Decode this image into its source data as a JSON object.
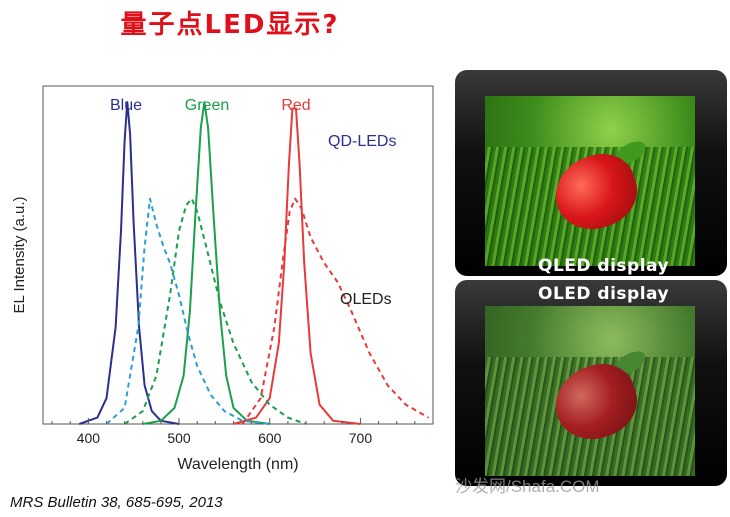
{
  "title": "量子点LED显示?",
  "citation": "MRS Bulletin 38, 685-695, 2013",
  "panels": {
    "top_label": "QLED  display",
    "bottom_label": "OLED display",
    "watermark": "沙发网/Shafa.COM"
  },
  "colors": {
    "blue": "#2b2f8f",
    "green": "#1aa04a",
    "red": "#e83a3a",
    "cyan": "#2a9fd6",
    "title": "#e0101a"
  },
  "chart_data": {
    "type": "line",
    "xlabel": "Wavelength (nm)",
    "ylabel": "EL Intensity (a.u.)",
    "xlim": [
      350,
      780
    ],
    "ylim": [
      0,
      1.05
    ],
    "xticks": [
      400,
      500,
      600,
      700
    ],
    "peak_labels": [
      "Blue",
      "Green",
      "Red"
    ],
    "annotations": [
      "QD-LEDs",
      "OLEDs"
    ],
    "series": [
      {
        "group": "QD-LEDs",
        "color": "blue",
        "style": "solid",
        "x": [
          390,
          410,
          420,
          430,
          436,
          440,
          443,
          446,
          450,
          456,
          462,
          470,
          480,
          500
        ],
        "y": [
          0,
          0.02,
          0.08,
          0.3,
          0.6,
          0.88,
          1.0,
          0.9,
          0.62,
          0.3,
          0.12,
          0.04,
          0.01,
          0
        ]
      },
      {
        "group": "QD-LEDs",
        "color": "green",
        "style": "solid",
        "x": [
          460,
          480,
          495,
          505,
          512,
          518,
          524,
          528,
          532,
          538,
          545,
          552,
          560,
          575,
          600
        ],
        "y": [
          0,
          0.01,
          0.05,
          0.15,
          0.35,
          0.65,
          0.92,
          1.0,
          0.92,
          0.65,
          0.35,
          0.15,
          0.05,
          0.01,
          0
        ]
      },
      {
        "group": "QD-LEDs",
        "color": "red",
        "style": "solid",
        "x": [
          560,
          585,
          600,
          610,
          616,
          621,
          625,
          629,
          633,
          638,
          645,
          655,
          670,
          700
        ],
        "y": [
          0,
          0.02,
          0.08,
          0.25,
          0.5,
          0.8,
          0.98,
          0.98,
          0.8,
          0.5,
          0.22,
          0.06,
          0.01,
          0
        ]
      },
      {
        "group": "OLEDs",
        "color": "cyan",
        "style": "dashed",
        "x": [
          420,
          440,
          455,
          462,
          468,
          475,
          483,
          490,
          500,
          510,
          520,
          535,
          550,
          570,
          600
        ],
        "y": [
          0,
          0.05,
          0.3,
          0.55,
          0.7,
          0.62,
          0.55,
          0.5,
          0.4,
          0.28,
          0.18,
          0.09,
          0.04,
          0.01,
          0
        ]
      },
      {
        "group": "OLEDs",
        "color": "green",
        "style": "dashed",
        "x": [
          440,
          460,
          475,
          490,
          500,
          508,
          514,
          520,
          530,
          545,
          560,
          580,
          600,
          620,
          640
        ],
        "y": [
          0,
          0.04,
          0.15,
          0.4,
          0.6,
          0.68,
          0.7,
          0.66,
          0.55,
          0.38,
          0.25,
          0.13,
          0.06,
          0.02,
          0
        ]
      },
      {
        "group": "OLEDs",
        "color": "red",
        "style": "dashed",
        "x": [
          570,
          590,
          605,
          615,
          622,
          628,
          635,
          645,
          660,
          675,
          690,
          710,
          730,
          750,
          775
        ],
        "y": [
          0,
          0.08,
          0.3,
          0.52,
          0.66,
          0.7,
          0.67,
          0.58,
          0.5,
          0.44,
          0.35,
          0.22,
          0.12,
          0.06,
          0.02
        ]
      }
    ]
  }
}
